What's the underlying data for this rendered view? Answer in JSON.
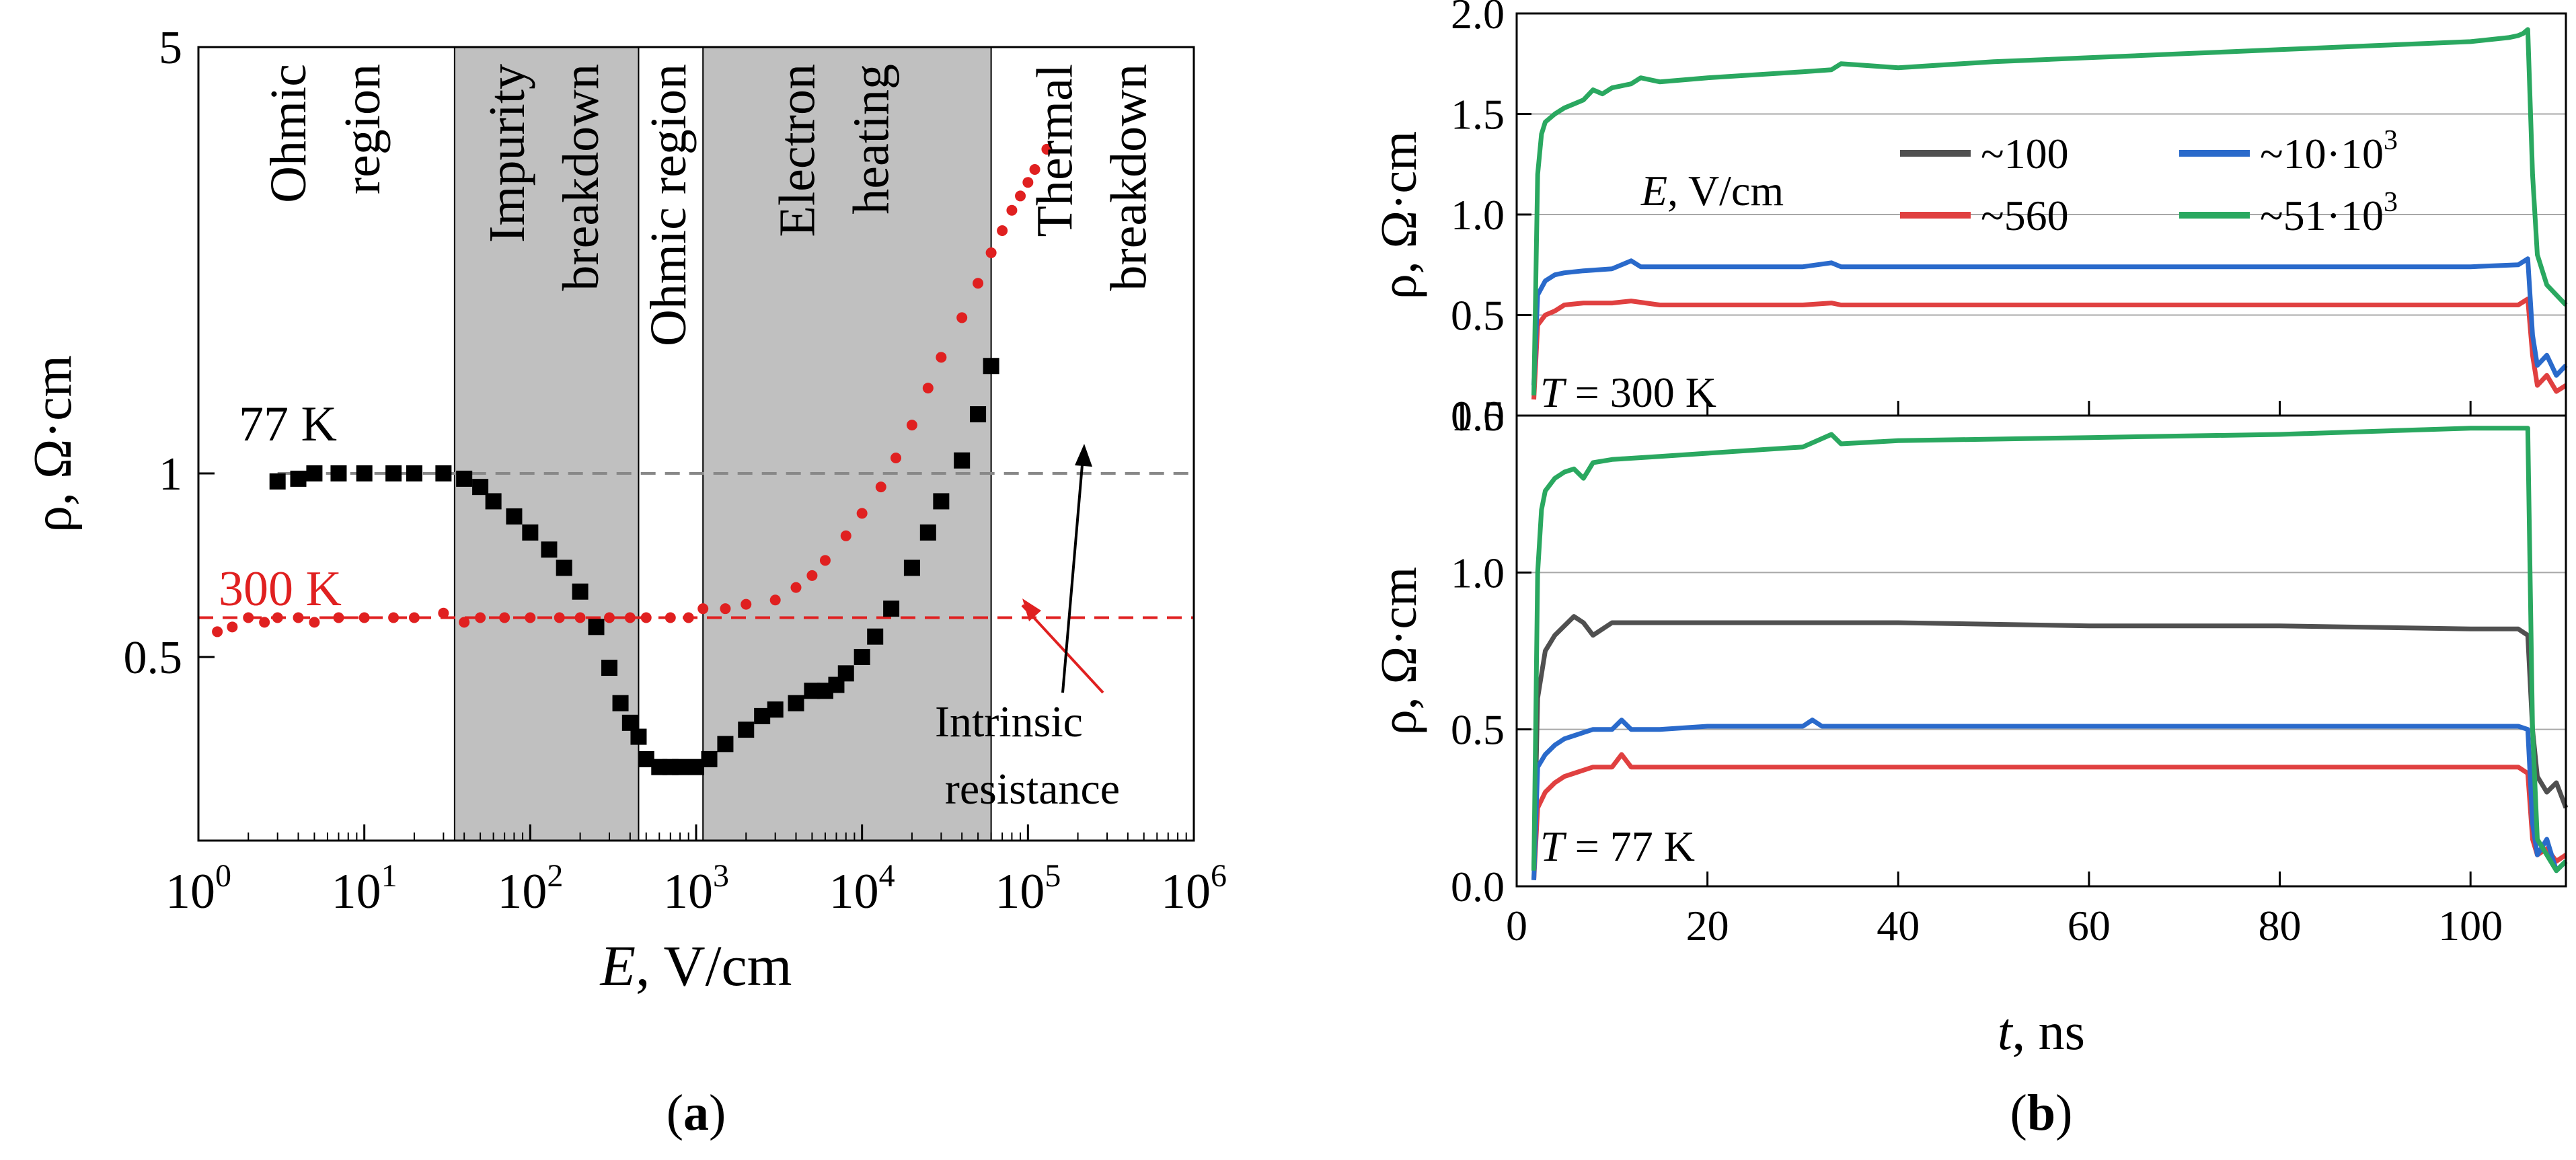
{
  "chart_data": [
    {
      "panel": "a",
      "type": "scatter",
      "caption_letter": "a",
      "xlabel_italic": "E",
      "xlabel_rest": ", V/cm",
      "ylabel": "ρ, Ω·cm",
      "xscale": "log",
      "yscale": "log",
      "xlim": [
        1,
        1000000
      ],
      "ylim": [
        0.25,
        5
      ],
      "x_ticks": [
        {
          "value": 1,
          "base": "10",
          "exp": "0"
        },
        {
          "value": 10,
          "base": "10",
          "exp": "1"
        },
        {
          "value": 100,
          "base": "10",
          "exp": "2"
        },
        {
          "value": 1000,
          "base": "10",
          "exp": "3"
        },
        {
          "value": 10000,
          "base": "10",
          "exp": "4"
        },
        {
          "value": 100000,
          "base": "10",
          "exp": "5"
        },
        {
          "value": 1000000,
          "base": "10",
          "exp": "6"
        }
      ],
      "y_ticks": [
        {
          "value": 0.5,
          "label": "0.5"
        },
        {
          "value": 1,
          "label": "1"
        },
        {
          "value": 5,
          "label": "5"
        }
      ],
      "shaded_regions": [
        {
          "name": "impurity-breakdown",
          "x0": 35,
          "x1": 450
        },
        {
          "name": "electron-heating",
          "x0": 1100,
          "x1": 60000
        }
      ],
      "region_labels": [
        {
          "name": "ohmic-region-1",
          "lines": [
            "Ohmic",
            "region"
          ],
          "x": 6
        },
        {
          "name": "impurity-breakdown",
          "lines": [
            "Impurity",
            "breakdown"
          ],
          "x": 125
        },
        {
          "name": "ohmic-region-2",
          "lines": [
            "Ohmic region"
          ],
          "x": 700
        },
        {
          "name": "electron-heating",
          "lines": [
            "Electron",
            "heating"
          ],
          "x": 7000
        },
        {
          "name": "thermal-breakdown",
          "lines": [
            "Thermal",
            "breakdown"
          ],
          "x": 250000
        }
      ],
      "reference_lines": [
        {
          "name": "77K-ref",
          "y": 1.0,
          "color": "#888888",
          "x_from": 3
        },
        {
          "name": "300K-ref",
          "y": 0.58,
          "color": "#e02020",
          "x_from": 1
        }
      ],
      "series": [
        {
          "name": "77 K",
          "color": "#000000",
          "marker": "square",
          "label": "77 K",
          "x": [
            3,
            4,
            5,
            7,
            10,
            15,
            20,
            30,
            40,
            50,
            60,
            80,
            100,
            130,
            160,
            200,
            250,
            300,
            350,
            400,
            450,
            500,
            600,
            700,
            800,
            1000,
            1200,
            1500,
            2000,
            2500,
            3000,
            4000,
            5000,
            6000,
            7000,
            8000,
            10000,
            12000,
            15000,
            20000,
            25000,
            30000,
            40000,
            50000,
            60000
          ],
          "values": [
            0.97,
            0.98,
            1.0,
            1.0,
            1.0,
            1.0,
            1.0,
            1.0,
            0.98,
            0.95,
            0.9,
            0.85,
            0.8,
            0.75,
            0.7,
            0.64,
            0.56,
            0.48,
            0.42,
            0.39,
            0.37,
            0.34,
            0.33,
            0.33,
            0.33,
            0.33,
            0.34,
            0.36,
            0.38,
            0.4,
            0.41,
            0.42,
            0.44,
            0.44,
            0.45,
            0.47,
            0.5,
            0.54,
            0.6,
            0.7,
            0.8,
            0.9,
            1.05,
            1.25,
            1.5
          ]
        },
        {
          "name": "300 K",
          "color": "#e02020",
          "marker": "circle",
          "label": "300 K",
          "x": [
            1.3,
            1.6,
            2,
            2.5,
            3,
            4,
            5,
            7,
            10,
            15,
            20,
            30,
            40,
            50,
            70,
            100,
            150,
            200,
            300,
            400,
            500,
            700,
            900,
            1100,
            1500,
            2000,
            3000,
            4000,
            5000,
            6000,
            8000,
            10000,
            13000,
            16000,
            20000,
            25000,
            30000,
            40000,
            50000,
            60000,
            70000,
            80000,
            90000,
            100000,
            110000,
            130000
          ],
          "values": [
            0.55,
            0.56,
            0.58,
            0.57,
            0.58,
            0.58,
            0.57,
            0.58,
            0.58,
            0.58,
            0.58,
            0.59,
            0.57,
            0.58,
            0.58,
            0.58,
            0.58,
            0.58,
            0.58,
            0.58,
            0.58,
            0.58,
            0.58,
            0.6,
            0.6,
            0.61,
            0.62,
            0.65,
            0.68,
            0.72,
            0.79,
            0.86,
            0.95,
            1.06,
            1.2,
            1.38,
            1.55,
            1.8,
            2.05,
            2.3,
            2.5,
            2.7,
            2.85,
            3.0,
            3.15,
            3.4
          ]
        }
      ],
      "annotation": {
        "lines": [
          "Intrinsic",
          "resistance"
        ],
        "arrows_to": [
          {
            "x": 80000,
            "y": 0.58
          },
          {
            "x": 200000,
            "y": 1.0
          }
        ]
      }
    },
    {
      "panel": "b",
      "type": "line",
      "caption_letter": "b",
      "xlabel_italic": "t",
      "xlabel_rest": ", ns",
      "ylabel": "ρ, Ω·cm",
      "xlim": [
        0,
        110
      ],
      "x_ticks": [
        0,
        20,
        40,
        60,
        80,
        100
      ],
      "legend_title_italic": "E",
      "legend_title_rest": ", V/cm",
      "legend": [
        {
          "label": "~100",
          "base": "~100",
          "exp": "",
          "color": "#505050"
        },
        {
          "label": "~10·10³",
          "base": "~10·10",
          "exp": "3",
          "color": "#2a6acb"
        },
        {
          "label": "~560",
          "base": "~560",
          "exp": "",
          "color": "#e04040"
        },
        {
          "label": "~51·10³",
          "base": "~51·10",
          "exp": "3",
          "color": "#2aa860"
        }
      ],
      "subplots": [
        {
          "name": "top",
          "temperature_label_italic": "T",
          "temperature_label_rest": " = 300 K",
          "ylim": [
            0,
            2.0
          ],
          "y_ticks": [
            0.0,
            0.5,
            1.0,
            1.5,
            2.0
          ],
          "y_tick_labels": [
            "0.0",
            "0.5",
            "1.0",
            "1.5",
            "2.0"
          ],
          "grid_y": [
            0.5,
            1.0,
            1.5
          ],
          "series": [
            {
              "name": "~100",
              "color": "#505050",
              "x": [],
              "values": []
            },
            {
              "name": "~560",
              "color": "#e04040",
              "x": [
                1.8,
                2.2,
                3,
                4,
                5,
                7,
                10,
                12,
                15,
                20,
                30,
                33,
                34,
                40,
                60,
                80,
                100,
                105,
                106,
                106.5,
                107,
                108,
                109,
                110
              ],
              "values": [
                0.08,
                0.45,
                0.5,
                0.52,
                0.55,
                0.56,
                0.56,
                0.57,
                0.55,
                0.55,
                0.55,
                0.56,
                0.55,
                0.55,
                0.55,
                0.55,
                0.55,
                0.55,
                0.58,
                0.3,
                0.15,
                0.2,
                0.12,
                0.15
              ]
            },
            {
              "name": "~10·10³",
              "color": "#2a6acb",
              "x": [
                1.8,
                2.2,
                3,
                4,
                5,
                7,
                10,
                12,
                13,
                15,
                20,
                30,
                33,
                34,
                40,
                60,
                80,
                100,
                105,
                106,
                106.5,
                107,
                108,
                109,
                110
              ],
              "values": [
                0.15,
                0.6,
                0.67,
                0.7,
                0.71,
                0.72,
                0.73,
                0.77,
                0.74,
                0.74,
                0.74,
                0.74,
                0.76,
                0.74,
                0.74,
                0.74,
                0.74,
                0.74,
                0.75,
                0.78,
                0.4,
                0.25,
                0.3,
                0.2,
                0.25
              ]
            },
            {
              "name": "~51·10³",
              "color": "#2aa860",
              "x": [
                1.8,
                2.2,
                2.6,
                3,
                4,
                5,
                6,
                7,
                8,
                9,
                10,
                12,
                13,
                15,
                20,
                30,
                33,
                34,
                40,
                50,
                60,
                70,
                80,
                90,
                100,
                104,
                105,
                105.5,
                106,
                106.5,
                107,
                108,
                109,
                110
              ],
              "values": [
                0.1,
                1.2,
                1.4,
                1.46,
                1.5,
                1.53,
                1.55,
                1.57,
                1.62,
                1.6,
                1.63,
                1.65,
                1.68,
                1.66,
                1.68,
                1.71,
                1.72,
                1.75,
                1.73,
                1.76,
                1.78,
                1.8,
                1.82,
                1.84,
                1.86,
                1.88,
                1.89,
                1.9,
                1.92,
                1.2,
                0.8,
                0.65,
                0.6,
                0.55
              ]
            }
          ]
        },
        {
          "name": "bottom",
          "temperature_label_italic": "T",
          "temperature_label_rest": " = 77 K",
          "ylim": [
            0,
            1.5
          ],
          "y_ticks": [
            0.0,
            0.5,
            1.0,
            1.5
          ],
          "y_tick_labels": [
            "0.0",
            "0.5",
            "1.0",
            "1.5"
          ],
          "grid_y": [
            0.5,
            1.0,
            1.5
          ],
          "series": [
            {
              "name": "~100",
              "color": "#505050",
              "x": [
                1.8,
                2.2,
                3,
                4,
                5,
                6,
                7,
                8,
                10,
                15,
                20,
                40,
                60,
                80,
                100,
                105,
                106,
                106.5,
                107,
                108,
                109,
                110
              ],
              "values": [
                0.05,
                0.6,
                0.75,
                0.8,
                0.83,
                0.86,
                0.84,
                0.8,
                0.84,
                0.84,
                0.84,
                0.84,
                0.83,
                0.83,
                0.82,
                0.82,
                0.8,
                0.5,
                0.35,
                0.3,
                0.33,
                0.25
              ]
            },
            {
              "name": "~560",
              "color": "#e04040",
              "x": [
                1.8,
                2.2,
                3,
                4,
                5,
                6,
                7,
                8,
                10,
                11,
                12,
                15,
                20,
                40,
                60,
                80,
                100,
                105,
                106,
                106.5,
                107,
                108,
                109,
                110
              ],
              "values": [
                0.02,
                0.25,
                0.3,
                0.33,
                0.35,
                0.36,
                0.37,
                0.38,
                0.38,
                0.42,
                0.38,
                0.38,
                0.38,
                0.38,
                0.38,
                0.38,
                0.38,
                0.38,
                0.36,
                0.15,
                0.1,
                0.12,
                0.08,
                0.1
              ]
            },
            {
              "name": "~10·10³",
              "color": "#2a6acb",
              "x": [
                1.8,
                2.2,
                3,
                4,
                5,
                6,
                7,
                8,
                10,
                11,
                12,
                15,
                20,
                30,
                31,
                32,
                40,
                60,
                80,
                100,
                105,
                106,
                106.5,
                107,
                108,
                109,
                110
              ],
              "values": [
                0.02,
                0.38,
                0.42,
                0.45,
                0.47,
                0.48,
                0.49,
                0.5,
                0.5,
                0.53,
                0.5,
                0.5,
                0.51,
                0.51,
                0.53,
                0.51,
                0.51,
                0.51,
                0.51,
                0.51,
                0.51,
                0.5,
                0.2,
                0.1,
                0.15,
                0.05,
                0.08
              ]
            },
            {
              "name": "~51·10³",
              "color": "#2aa860",
              "x": [
                1.8,
                2.2,
                2.6,
                3,
                4,
                5,
                6,
                7,
                8,
                10,
                15,
                20,
                30,
                33,
                34,
                40,
                60,
                80,
                100,
                104,
                106,
                106.5,
                107,
                108,
                109,
                110
              ],
              "values": [
                0.05,
                1.0,
                1.2,
                1.26,
                1.3,
                1.32,
                1.33,
                1.3,
                1.35,
                1.36,
                1.37,
                1.38,
                1.4,
                1.44,
                1.41,
                1.42,
                1.43,
                1.44,
                1.46,
                1.46,
                1.46,
                0.5,
                0.15,
                0.1,
                0.05,
                0.08
              ]
            }
          ]
        }
      ]
    }
  ]
}
